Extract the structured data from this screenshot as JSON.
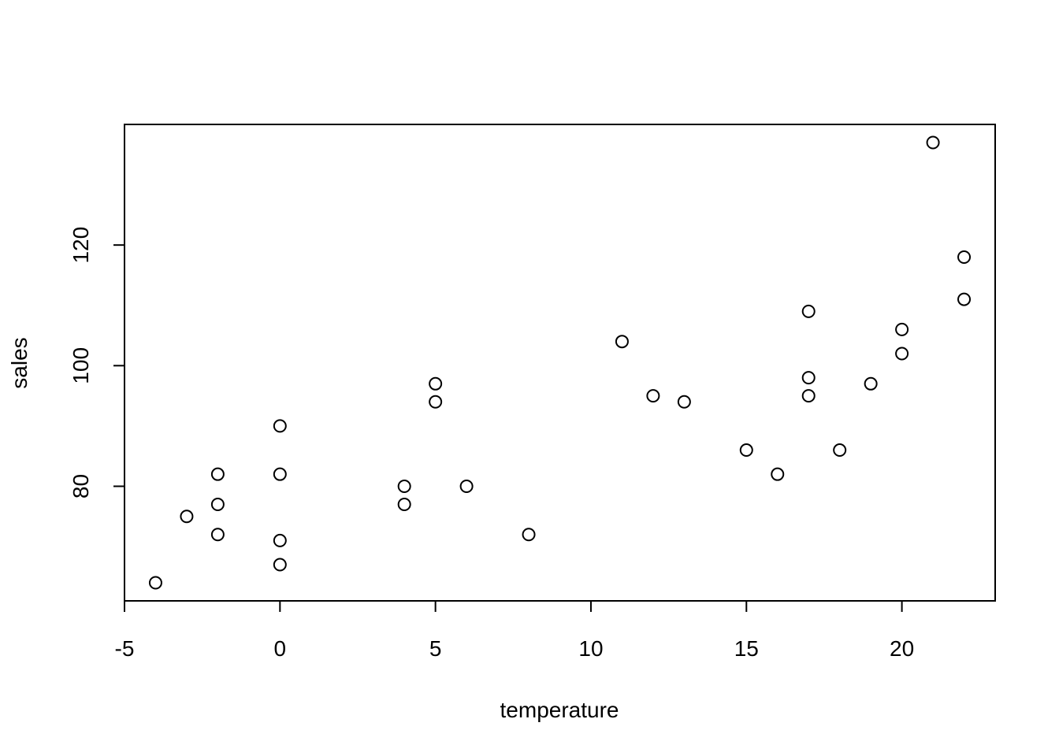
{
  "chart_data": {
    "type": "scatter",
    "title": "",
    "xlabel": "temperature",
    "ylabel": "sales",
    "xlim": [
      -5,
      23
    ],
    "ylim": [
      61,
      140
    ],
    "x_ticks": [
      -5,
      0,
      5,
      10,
      15,
      20
    ],
    "y_ticks": [
      80,
      100,
      120
    ],
    "grid": false,
    "points": [
      {
        "x": -4,
        "y": 64
      },
      {
        "x": -3,
        "y": 75
      },
      {
        "x": -2,
        "y": 82
      },
      {
        "x": -2,
        "y": 77
      },
      {
        "x": -2,
        "y": 72
      },
      {
        "x": 0,
        "y": 90
      },
      {
        "x": 0,
        "y": 82
      },
      {
        "x": 0,
        "y": 71
      },
      {
        "x": 0,
        "y": 67
      },
      {
        "x": 4,
        "y": 80
      },
      {
        "x": 4,
        "y": 77
      },
      {
        "x": 5,
        "y": 97
      },
      {
        "x": 5,
        "y": 94
      },
      {
        "x": 6,
        "y": 80
      },
      {
        "x": 8,
        "y": 72
      },
      {
        "x": 11,
        "y": 104
      },
      {
        "x": 12,
        "y": 95
      },
      {
        "x": 13,
        "y": 94
      },
      {
        "x": 15,
        "y": 86
      },
      {
        "x": 16,
        "y": 82
      },
      {
        "x": 17,
        "y": 109
      },
      {
        "x": 17,
        "y": 98
      },
      {
        "x": 17,
        "y": 95
      },
      {
        "x": 18,
        "y": 86
      },
      {
        "x": 19,
        "y": 97
      },
      {
        "x": 20,
        "y": 106
      },
      {
        "x": 20,
        "y": 102
      },
      {
        "x": 21,
        "y": 137
      },
      {
        "x": 22,
        "y": 118
      },
      {
        "x": 22,
        "y": 111
      }
    ]
  }
}
